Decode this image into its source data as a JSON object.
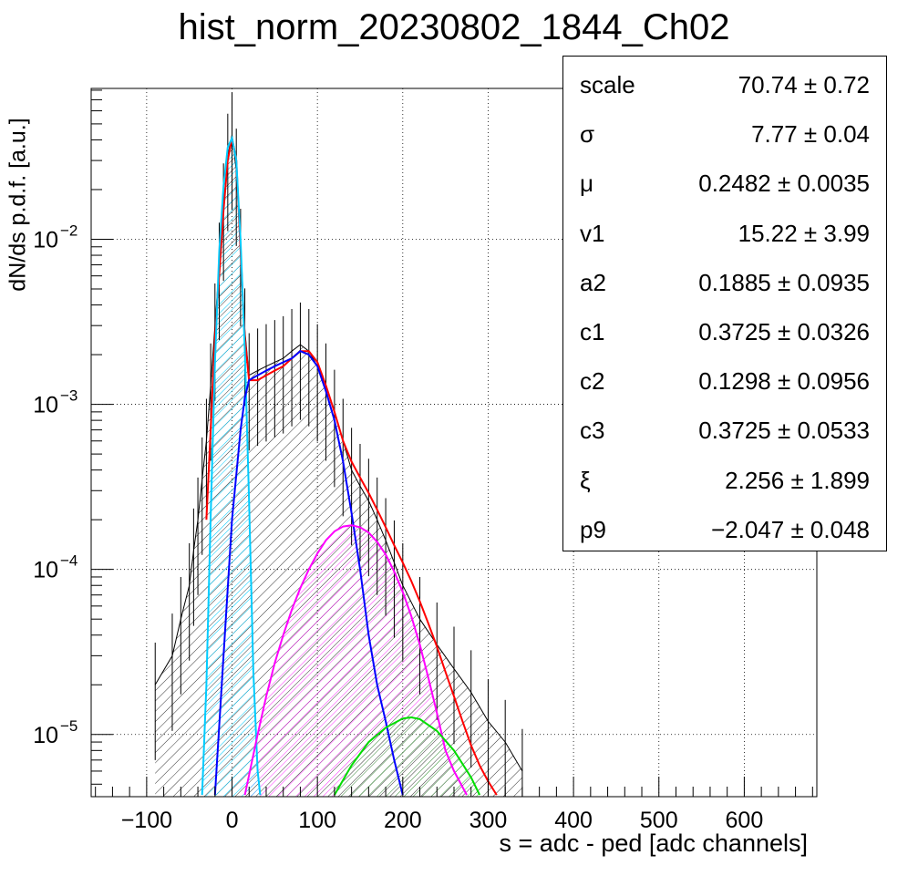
{
  "title": "hist_norm_20230802_1844_Ch02",
  "stats": [
    {
      "name": "scale",
      "value": "70.74 ± 0.72"
    },
    {
      "name": "σ",
      "value": "7.77 ± 0.04"
    },
    {
      "name": "μ",
      "value": "0.2482 ± 0.0035"
    },
    {
      "name": "v1",
      "value": "15.22 ± 3.99"
    },
    {
      "name": "a2",
      "value": "0.1885 ± 0.0935"
    },
    {
      "name": "c1",
      "value": "0.3725 ± 0.0326"
    },
    {
      "name": "c2",
      "value": "0.1298 ± 0.0956"
    },
    {
      "name": "c3",
      "value": "0.3725 ± 0.0533"
    },
    {
      "name": "ξ",
      "value": "2.256 ± 1.899"
    },
    {
      "name": "p9",
      "value": "−2.047 ± 0.048"
    }
  ],
  "chart_data": {
    "type": "line",
    "title": "hist_norm_20230802_1844_Ch02",
    "xlabel": "s = adc - ped [adc channels]",
    "ylabel": "dN/ds p.d.f. [a.u.]",
    "xlim": [
      -165,
      685
    ],
    "ylim": [
      4.2e-06,
      0.082
    ],
    "ylog": true,
    "grid": true,
    "x_ticks": [
      -100,
      0,
      100,
      200,
      300,
      400,
      500,
      600
    ],
    "x_tick_labels": [
      "−100",
      "0",
      "100",
      "200",
      "300",
      "400",
      "500",
      "600"
    ],
    "y_ticks": [
      {
        "value": 1e-05,
        "label": "10",
        "exp": "−5"
      },
      {
        "value": 0.0001,
        "label": "10",
        "exp": "−4"
      },
      {
        "value": 0.001,
        "label": "10",
        "exp": "−3"
      },
      {
        "value": 0.01,
        "label": "10",
        "exp": "−2"
      }
    ],
    "series": [
      {
        "name": "",
        "role": "histogram",
        "color": "#000000",
        "x": [
          -90,
          -70,
          -60,
          -50,
          -45,
          -40,
          -35,
          -30,
          -25,
          -20,
          -15,
          -10,
          -5,
          0,
          5,
          10,
          15,
          20,
          30,
          40,
          50,
          60,
          70,
          80,
          90,
          100,
          110,
          120,
          130,
          140,
          150,
          160,
          170,
          180,
          190,
          200,
          220,
          240,
          260,
          280,
          300,
          320,
          340
        ],
        "y": [
          2e-05,
          3e-05,
          5e-05,
          8e-05,
          0.00013,
          0.0002,
          0.00035,
          0.0006,
          0.0013,
          0.003,
          0.007,
          0.016,
          0.032,
          0.043,
          0.026,
          0.0085,
          0.0028,
          0.0015,
          0.0016,
          0.0017,
          0.0018,
          0.0019,
          0.0021,
          0.0023,
          0.0021,
          0.0017,
          0.0013,
          0.0009,
          0.0006,
          0.0004,
          0.00032,
          0.00026,
          0.0002,
          0.00015,
          0.00011,
          8e-05,
          5e-05,
          3.5e-05,
          2.5e-05,
          1.8e-05,
          1.2e-05,
          9e-06,
          6e-06
        ]
      },
      {
        "name": "",
        "role": "total-fit",
        "color": "#ff0000",
        "x": [
          -30,
          -20,
          -10,
          -5,
          0,
          5,
          10,
          15,
          20,
          30,
          40,
          50,
          60,
          70,
          80,
          90,
          100,
          110,
          120,
          130,
          140,
          150,
          160,
          170,
          180,
          190,
          200,
          210,
          220,
          230,
          240,
          250,
          260,
          270,
          280,
          290,
          300,
          310
        ],
        "y": [
          0.0002,
          0.0025,
          0.015,
          0.03,
          0.041,
          0.03,
          0.0085,
          0.0025,
          0.0014,
          0.0014,
          0.0015,
          0.0016,
          0.0017,
          0.0019,
          0.0021,
          0.0021,
          0.0018,
          0.0013,
          0.0009,
          0.0006,
          0.00045,
          0.00036,
          0.00029,
          0.00023,
          0.00018,
          0.00014,
          0.00011,
          8.5e-05,
          6.4e-05,
          4.7e-05,
          3.4e-05,
          2.4e-05,
          1.7e-05,
          1.2e-05,
          8.6e-06,
          6.5e-06,
          5.2e-06,
          4.3e-06
        ]
      },
      {
        "name": "",
        "role": "pedestal",
        "color": "#00ccff",
        "x": [
          -35,
          -30,
          -25,
          -20,
          -15,
          -10,
          -5,
          0,
          5,
          10,
          15,
          20,
          25,
          30,
          33
        ],
        "y": [
          4.3e-06,
          2e-05,
          0.00021,
          0.0018,
          0.0085,
          0.021,
          0.036,
          0.041,
          0.03,
          0.0098,
          0.0021,
          0.00026,
          2.4e-05,
          6e-06,
          4.3e-06
        ]
      },
      {
        "name": "",
        "role": "1-pe",
        "color": "#0000ff",
        "x": [
          -20,
          -10,
          0,
          10,
          15,
          20,
          30,
          40,
          50,
          60,
          70,
          80,
          90,
          100,
          110,
          120,
          130,
          140,
          150,
          160,
          170,
          180,
          190,
          200
        ],
        "y": [
          4.3e-06,
          3e-05,
          0.0002,
          0.0007,
          0.0011,
          0.0014,
          0.0015,
          0.0016,
          0.0017,
          0.0018,
          0.0019,
          0.0021,
          0.002,
          0.0017,
          0.0012,
          0.0008,
          0.00045,
          0.00022,
          0.0001,
          4e-05,
          2e-05,
          1.2e-05,
          7e-06,
          4.3e-06
        ]
      },
      {
        "name": "",
        "role": "2-pe",
        "color": "#ff00ff",
        "x": [
          15,
          30,
          40,
          50,
          60,
          70,
          80,
          90,
          100,
          110,
          120,
          130,
          140,
          150,
          160,
          170,
          180,
          190,
          200,
          210,
          220,
          230,
          240,
          250,
          260,
          270,
          275
        ],
        "y": [
          4.3e-06,
          1e-05,
          1.7e-05,
          2.7e-05,
          4e-05,
          5.7e-05,
          7.7e-05,
          0.0001,
          0.000125,
          0.00015,
          0.00017,
          0.000182,
          0.000185,
          0.00018,
          0.000167,
          0.000147,
          0.000123,
          9.7e-05,
          7.3e-05,
          5.2e-05,
          3.5e-05,
          2.2e-05,
          1.35e-05,
          8e-06,
          6e-06,
          4.8e-06,
          4.3e-06
        ]
      },
      {
        "name": "",
        "role": "3-pe",
        "color": "#00dd00",
        "x": [
          120,
          140,
          160,
          180,
          200,
          210,
          220,
          240,
          260,
          280,
          290
        ],
        "y": [
          4.3e-06,
          6.5e-06,
          9e-06,
          1.1e-05,
          1.25e-05,
          1.27e-05,
          1.24e-05,
          1.05e-05,
          8e-06,
          5.5e-06,
          4.3e-06
        ]
      }
    ]
  }
}
